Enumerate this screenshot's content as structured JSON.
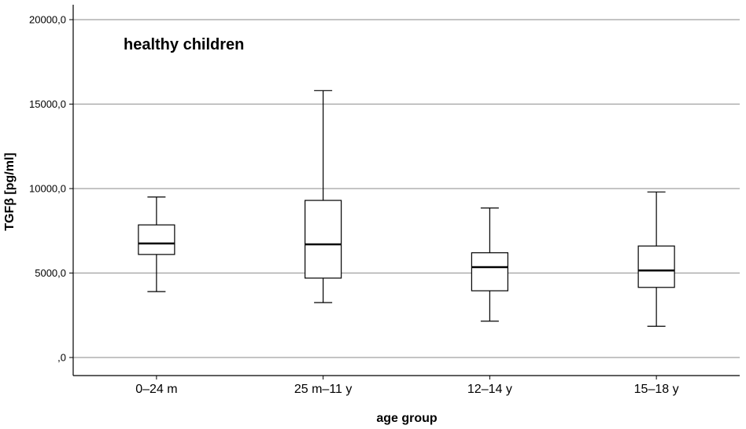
{
  "chart_data": {
    "type": "boxplot",
    "title": "",
    "annotation": "healthy children",
    "xlabel": "age group",
    "ylabel": "TGFβ [pg/ml]",
    "ylim": [
      -1000,
      20500
    ],
    "yticks": [
      0,
      5000,
      10000,
      15000,
      20000
    ],
    "ytick_labels": [
      ",0",
      "5000,0",
      "10000,0",
      "15000,0",
      "20000,0"
    ],
    "grid": "horizontal",
    "categories": [
      "0–24 m",
      "25 m–11 y",
      "12–14 y",
      "15–18 y"
    ],
    "boxes": [
      {
        "min": 3900,
        "q1": 6100,
        "median": 6750,
        "q3": 7850,
        "max": 9500
      },
      {
        "min": 3250,
        "q1": 4700,
        "median": 6700,
        "q3": 9300,
        "max": 15800
      },
      {
        "min": 2150,
        "q1": 3950,
        "median": 5350,
        "q3": 6200,
        "max": 8850
      },
      {
        "min": 1850,
        "q1": 4150,
        "median": 5150,
        "q3": 6600,
        "max": 9800
      }
    ],
    "colors": {
      "box_fill": "#ffffff",
      "stroke": "#000000",
      "grid": "#a0a0a0"
    }
  }
}
